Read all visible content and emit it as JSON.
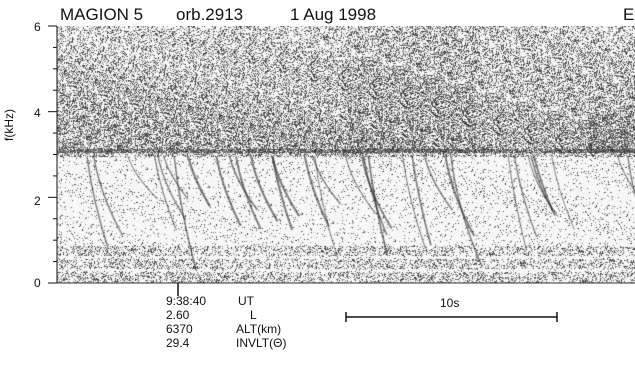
{
  "header": {
    "satellite": "MAGION 5",
    "orbit": "orb.2913",
    "date": "1 Aug 1998",
    "edge_letter": "E"
  },
  "chart_data": {
    "type": "heatmap",
    "title": "MAGION 5   orb.2913   1 Aug 1998",
    "ylabel": "f(kHz)",
    "ylim": [
      0,
      6
    ],
    "yticks": [
      0,
      2,
      4,
      6
    ],
    "ytick_labels": [
      "0",
      "2",
      "4",
      "6"
    ],
    "grid": false,
    "band_edge_khz": 3.05,
    "lower_bands_khz": [
      0.45,
      0.75
    ],
    "colors": {
      "background": "#ffffff",
      "signal": "#1a1a1a",
      "noise": "#7a7a7a"
    },
    "time_marker": {
      "labels": [
        "9:38:40",
        "2.60",
        "6370",
        "29.4"
      ],
      "quantities": [
        "UT",
        "L",
        "ALT(km)",
        "INVLT(Θ)"
      ]
    },
    "scale_bar_label": "10s"
  }
}
